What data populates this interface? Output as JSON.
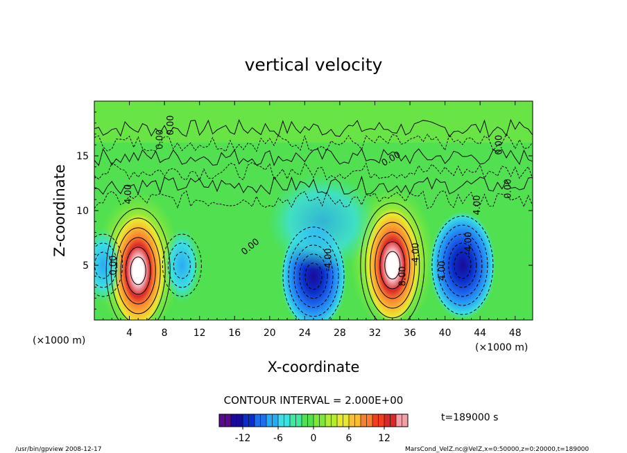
{
  "chart_data": {
    "type": "heatmap",
    "title": "vertical velocity",
    "xlabel": "X-coordinate",
    "ylabel": "Z-coordinate",
    "x_unit_left": "(×1000 m)",
    "x_unit_right": "(×1000 m)",
    "xlim": [
      0,
      50
    ],
    "ylim": [
      0,
      20
    ],
    "x_ticks": [
      4,
      8,
      12,
      16,
      20,
      24,
      28,
      32,
      36,
      40,
      44,
      48
    ],
    "y_ticks": [
      5,
      10,
      15
    ],
    "contour_interval_text": "CONTOUR INTERVAL = 2.000E+00",
    "time_text": "t=189000 s",
    "contour_labels": [
      "4.00",
      "0.00",
      "0.00",
      "0.00",
      "0.00",
      "0.00",
      "0.00",
      "8.00",
      "4.00",
      "-4.00",
      "-4.00",
      "4.00",
      "0.00",
      "-4.00"
    ],
    "colorbar": {
      "min": -16,
      "max": 16,
      "ticks": [
        -12,
        -6,
        0,
        6,
        12
      ],
      "colors": [
        "#5a0a8c",
        "#1a0a9a",
        "#0a2fc8",
        "#1e6ef0",
        "#2aaaf5",
        "#3ce0e0",
        "#40e8a0",
        "#50e050",
        "#7ce83c",
        "#b4ec30",
        "#e8e830",
        "#f8c030",
        "#f88030",
        "#f04020",
        "#d82828",
        "#f0a0a8"
      ]
    },
    "features": [
      {
        "type": "updraft",
        "x": 5,
        "z": 4.5,
        "peak": 14
      },
      {
        "type": "updraft",
        "x": 34,
        "z": 5,
        "peak": 14
      },
      {
        "type": "downdraft",
        "x": 25,
        "z": 4,
        "peak": -14
      },
      {
        "type": "downdraft",
        "x": 42,
        "z": 5,
        "peak": -10
      },
      {
        "type": "downdraft",
        "x": 10,
        "z": 5,
        "peak": -6
      },
      {
        "type": "downdraft",
        "x": 1,
        "z": 5,
        "peak": -6
      }
    ]
  },
  "footer": {
    "left": "/usr/bin/gpview  2008-12-17",
    "right": "MarsCond_VelZ.nc@VelZ,x=0:50000,z=0:20000,t=189000"
  }
}
